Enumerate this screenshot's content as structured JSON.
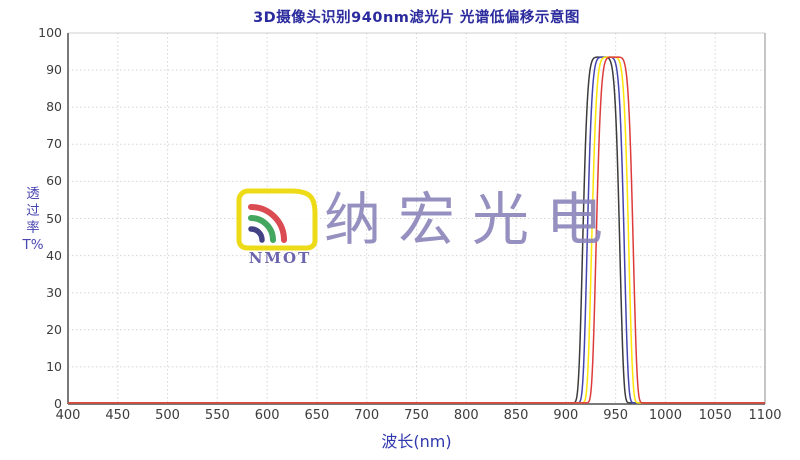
{
  "title": {
    "text": "3D摄像头识别940nm滤光片 光谱低偏移示意图",
    "color": "#2b2b9e"
  },
  "axes": {
    "x_label": "波长(nm)",
    "x_label_color": "#3038ae",
    "y_label_chars": [
      "透",
      "过",
      "率",
      "T%"
    ],
    "y_label_color": "#4946b2",
    "tick_color": "#3d3d3d"
  },
  "watermark": {
    "logo_text": "NMOT",
    "logo_text_color": "#5b55a5",
    "logo_border_color": "#ecd800",
    "logo_arc_colors": [
      "#2e2e78",
      "#2f9e4e",
      "#d83840"
    ],
    "company_text": "纳宏光电",
    "company_color": "#8b84bb"
  },
  "chart_data": {
    "type": "line",
    "title": "3D摄像头识别940nm滤光片 光谱低偏移示意图",
    "xlabel": "波长(nm)",
    "ylabel": "透过率T%",
    "xlim": [
      400,
      1100
    ],
    "ylim": [
      0,
      100
    ],
    "x_ticks": [
      400,
      450,
      500,
      550,
      600,
      650,
      700,
      750,
      800,
      850,
      900,
      950,
      1000,
      1050,
      1100
    ],
    "y_ticks": [
      0,
      10,
      20,
      30,
      40,
      50,
      60,
      70,
      80,
      90,
      100
    ],
    "grid": "dotted, both axes, light gray",
    "legend_position": "none",
    "curve_shape": "flat_top_bandpass",
    "flat_top_exponent": 6,
    "series": [
      {
        "name": "black-curve",
        "color": "#3c3c3c",
        "center_nm": 935.5,
        "fwhm_nm": 36.5,
        "peak_transmission_pct": 93.5,
        "baseline_pct": 0.3,
        "rise_50pct_nm": 917,
        "fall_50pct_nm": 954
      },
      {
        "name": "blue-curve",
        "color": "#4444ae",
        "center_nm": 940,
        "fwhm_nm": 36.5,
        "peak_transmission_pct": 93.5,
        "baseline_pct": 0.3,
        "rise_50pct_nm": 921.5,
        "fall_50pct_nm": 958.5
      },
      {
        "name": "yellow-curve",
        "color": "#ffe408",
        "center_nm": 944.5,
        "fwhm_nm": 36.5,
        "peak_transmission_pct": 93.5,
        "baseline_pct": 0.3,
        "rise_50pct_nm": 926,
        "fall_50pct_nm": 963
      },
      {
        "name": "red-curve",
        "color": "#dd3b3b",
        "center_nm": 949,
        "fwhm_nm": 36.5,
        "peak_transmission_pct": 93.5,
        "baseline_pct": 0.3,
        "rise_50pct_nm": 930.5,
        "fall_50pct_nm": 967.5
      }
    ]
  }
}
